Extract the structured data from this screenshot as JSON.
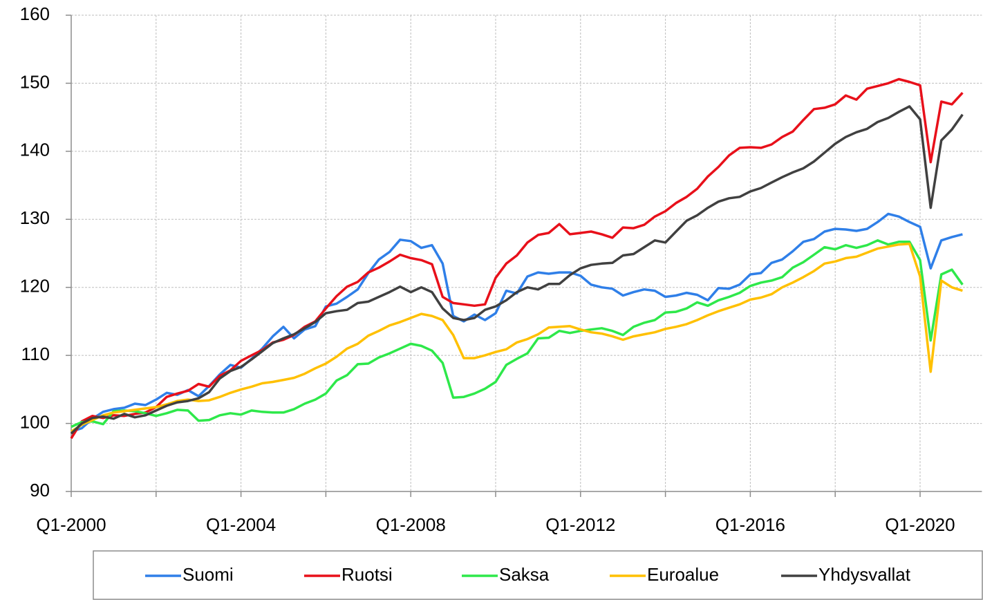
{
  "chart_data": {
    "type": "line",
    "categories": [
      "Q1-2000",
      null,
      null,
      null,
      null,
      null,
      null,
      null,
      null,
      null,
      null,
      null,
      null,
      null,
      null,
      null,
      "Q1-2004",
      null,
      null,
      null,
      null,
      null,
      null,
      null,
      null,
      null,
      null,
      null,
      null,
      null,
      null,
      null,
      "Q1-2008",
      null,
      null,
      null,
      null,
      null,
      null,
      null,
      null,
      null,
      null,
      null,
      null,
      null,
      null,
      null,
      "Q1-2012",
      null,
      null,
      null,
      null,
      null,
      null,
      null,
      null,
      null,
      null,
      null,
      null,
      null,
      null,
      null,
      "Q1-2016",
      null,
      null,
      null,
      null,
      null,
      null,
      null,
      null,
      null,
      null,
      null,
      null,
      null,
      null,
      null,
      "Q1-2020",
      null,
      null,
      null,
      null
    ],
    "series": [
      {
        "name": "Suomi",
        "color": "#2f7fe8",
        "values": [
          98.8,
          99.3,
          100.7,
          101.7,
          102.1,
          102.3,
          102.9,
          102.7,
          103.5,
          104.5,
          104.2,
          104.9,
          104.0,
          105.5,
          107.2,
          108.6,
          108.2,
          109.5,
          111.0,
          112.8,
          114.2,
          112.5,
          113.8,
          114.3,
          117.2,
          117.6,
          118.6,
          119.7,
          122.1,
          124.1,
          125.2,
          127.0,
          126.8,
          125.8,
          126.2,
          123.5,
          115.8,
          115.0,
          116.0,
          115.2,
          116.2,
          119.5,
          119.1,
          121.6,
          122.2,
          122.0,
          122.2,
          122.2,
          121.7,
          120.4,
          120.0,
          119.8,
          118.8,
          119.3,
          119.7,
          119.5,
          118.6,
          118.8,
          119.2,
          118.9,
          118.1,
          119.9,
          119.8,
          120.4,
          121.9,
          122.1,
          123.6,
          124.1,
          125.3,
          126.7,
          127.1,
          128.2,
          128.6,
          128.5,
          128.3,
          128.6,
          129.6,
          130.8,
          130.4,
          129.6,
          128.9,
          122.8,
          126.9,
          127.4,
          127.8
        ]
      },
      {
        "name": "Ruotsi",
        "color": "#e8101a",
        "values": [
          97.8,
          100.3,
          101.1,
          100.8,
          101.2,
          101.1,
          101.4,
          101.6,
          102.4,
          103.9,
          104.4,
          104.8,
          105.8,
          105.4,
          107.0,
          107.8,
          109.2,
          110.0,
          110.8,
          111.9,
          112.3,
          113.0,
          114.2,
          115.0,
          116.9,
          118.7,
          120.1,
          120.8,
          122.2,
          122.9,
          123.8,
          124.8,
          124.3,
          124.0,
          123.4,
          118.6,
          117.7,
          117.5,
          117.3,
          117.5,
          121.4,
          123.5,
          124.7,
          126.6,
          127.7,
          128.0,
          129.3,
          127.8,
          128.0,
          128.2,
          127.8,
          127.3,
          128.8,
          128.7,
          129.2,
          130.4,
          131.2,
          132.4,
          133.3,
          134.5,
          136.3,
          137.7,
          139.4,
          140.5,
          140.6,
          140.5,
          141.0,
          142.1,
          142.9,
          144.6,
          146.2,
          146.4,
          146.9,
          148.2,
          147.6,
          149.2,
          149.6,
          150.0,
          150.6,
          150.2,
          149.7,
          138.4,
          147.3,
          146.9,
          148.6
        ]
      },
      {
        "name": "Saksa",
        "color": "#2ee84a",
        "values": [
          99.5,
          100.2,
          100.3,
          99.9,
          101.8,
          101.9,
          101.8,
          101.5,
          101.1,
          101.5,
          102.0,
          101.9,
          100.4,
          100.5,
          101.2,
          101.5,
          101.3,
          101.9,
          101.7,
          101.6,
          101.6,
          102.1,
          102.9,
          103.5,
          104.4,
          106.3,
          107.1,
          108.7,
          108.8,
          109.7,
          110.3,
          111.0,
          111.7,
          111.4,
          110.7,
          108.9,
          103.8,
          103.9,
          104.4,
          105.1,
          106.1,
          108.6,
          109.5,
          110.3,
          112.5,
          112.6,
          113.6,
          113.3,
          113.6,
          113.8,
          114.0,
          113.6,
          113.0,
          114.2,
          114.8,
          115.2,
          116.3,
          116.4,
          116.9,
          117.8,
          117.3,
          118.1,
          118.6,
          119.2,
          120.2,
          120.7,
          121.0,
          121.5,
          122.9,
          123.7,
          124.8,
          125.9,
          125.6,
          126.2,
          125.8,
          126.2,
          126.9,
          126.3,
          126.7,
          126.7,
          124.0,
          112.2,
          121.9,
          122.6,
          120.4
        ]
      },
      {
        "name": "Euroalue",
        "color": "#ffc000",
        "values": [
          98.8,
          99.8,
          100.5,
          101.2,
          101.6,
          101.8,
          102.0,
          102.2,
          102.4,
          102.8,
          103.3,
          103.5,
          103.3,
          103.4,
          103.9,
          104.5,
          105.0,
          105.4,
          105.9,
          106.1,
          106.4,
          106.7,
          107.3,
          108.1,
          108.8,
          109.8,
          111.0,
          111.7,
          112.9,
          113.6,
          114.4,
          114.9,
          115.5,
          116.1,
          115.8,
          115.2,
          113.0,
          109.6,
          109.6,
          110.0,
          110.5,
          110.9,
          111.9,
          112.4,
          113.1,
          114.1,
          114.2,
          114.3,
          113.8,
          113.4,
          113.2,
          112.8,
          112.3,
          112.8,
          113.1,
          113.4,
          113.9,
          114.2,
          114.6,
          115.2,
          115.9,
          116.5,
          117.0,
          117.5,
          118.2,
          118.5,
          119.0,
          120.0,
          120.7,
          121.5,
          122.4,
          123.5,
          123.8,
          124.3,
          124.5,
          125.1,
          125.7,
          126.0,
          126.3,
          126.4,
          121.6,
          107.6,
          121.0,
          120.0,
          119.5
        ]
      },
      {
        "name": "Yhdysvallat",
        "color": "#404040",
        "values": [
          98.5,
          100.0,
          100.8,
          101.0,
          100.7,
          101.4,
          100.9,
          101.2,
          101.9,
          102.6,
          103.1,
          103.3,
          103.7,
          104.6,
          106.6,
          107.7,
          108.3,
          109.4,
          110.6,
          111.8,
          112.5,
          113.1,
          114.0,
          114.9,
          116.2,
          116.5,
          116.7,
          117.7,
          117.9,
          118.6,
          119.3,
          120.1,
          119.3,
          120.0,
          119.3,
          116.9,
          115.5,
          115.2,
          115.5,
          116.7,
          117.2,
          118.1,
          119.3,
          120.0,
          119.7,
          120.5,
          120.5,
          121.8,
          122.8,
          123.3,
          123.5,
          123.6,
          124.7,
          124.9,
          125.9,
          126.9,
          126.6,
          128.2,
          129.8,
          130.6,
          131.7,
          132.6,
          133.1,
          133.3,
          134.1,
          134.6,
          135.4,
          136.2,
          136.9,
          137.5,
          138.5,
          139.8,
          141.1,
          142.1,
          142.8,
          143.3,
          144.3,
          144.9,
          145.8,
          146.6,
          144.7,
          131.7,
          141.6,
          143.2,
          145.4
        ]
      }
    ],
    "ylim": [
      90,
      160
    ],
    "yticks": [
      90,
      100,
      110,
      120,
      130,
      140,
      150,
      160
    ],
    "grid": true,
    "legend": "bottom"
  }
}
